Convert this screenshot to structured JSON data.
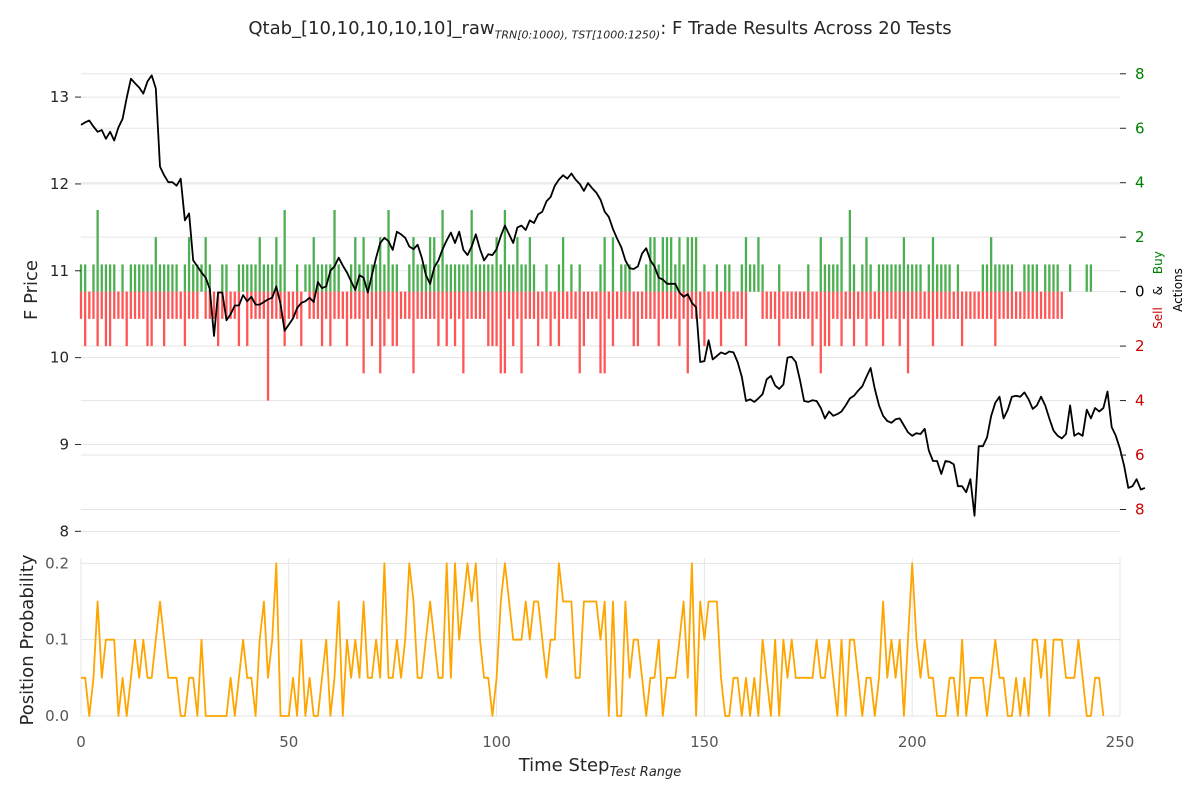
{
  "chart_data": {
    "type": "line",
    "title": {
      "prefix": "Qtab_[10,10,10,10,10]_raw",
      "subscript": "TRN[0:1000), TST[1000:1250)",
      "suffix": ": F Trade Results Across 20 Tests"
    },
    "price_panel": {
      "ylabel": "F Price",
      "ylim": [
        7.9,
        13.45
      ],
      "yticks": [
        "8",
        "9",
        "10",
        "11",
        "12",
        "13"
      ],
      "line_color": "#000000",
      "price": [
        12.68,
        12.71,
        12.73,
        12.66,
        12.6,
        12.62,
        12.52,
        12.6,
        12.5,
        12.65,
        12.75,
        12.99,
        13.21,
        13.16,
        13.11,
        13.04,
        13.18,
        13.25,
        13.1,
        12.2,
        12.1,
        12.02,
        12.02,
        11.98,
        12.06,
        11.58,
        11.66,
        11.12,
        11.05,
        10.98,
        10.92,
        10.79,
        10.25,
        10.75,
        10.75,
        10.43,
        10.5,
        10.6,
        10.6,
        10.72,
        10.65,
        10.7,
        10.61,
        10.61,
        10.64,
        10.67,
        10.69,
        10.82,
        10.62,
        10.31,
        10.38,
        10.45,
        10.57,
        10.63,
        10.65,
        10.69,
        10.64,
        10.87,
        10.8,
        10.82,
        11.0,
        11.05,
        11.15,
        11.06,
        10.98,
        10.88,
        10.78,
        10.95,
        10.92,
        10.75,
        10.95,
        11.15,
        11.32,
        11.38,
        11.34,
        11.24,
        11.45,
        11.42,
        11.38,
        11.28,
        11.25,
        11.3,
        11.15,
        10.95,
        10.85,
        11.04,
        11.12,
        11.25,
        11.35,
        11.44,
        11.32,
        11.45,
        11.24,
        11.18,
        11.28,
        11.42,
        11.25,
        11.12,
        11.19,
        11.18,
        11.25,
        11.4,
        11.52,
        11.42,
        11.32,
        11.5,
        11.52,
        11.47,
        11.58,
        11.55,
        11.65,
        11.68,
        11.8,
        11.85,
        11.98,
        12.05,
        12.1,
        12.06,
        12.12,
        12.05,
        12.0,
        11.92,
        12.01,
        11.95,
        11.9,
        11.82,
        11.68,
        11.62,
        11.48,
        11.37,
        11.27,
        11.12,
        11.03,
        11.02,
        11.05,
        11.2,
        11.26,
        11.12,
        11.05,
        10.92,
        10.9,
        10.85,
        10.85,
        10.85,
        10.75,
        10.7,
        10.73,
        10.63,
        10.58,
        9.95,
        9.96,
        10.2,
        9.98,
        10.02,
        10.06,
        10.04,
        10.07,
        10.06,
        9.95,
        9.78,
        9.5,
        9.52,
        9.49,
        9.53,
        9.58,
        9.75,
        9.79,
        9.68,
        9.64,
        9.69,
        10.0,
        10.01,
        9.95,
        9.74,
        9.5,
        9.49,
        9.51,
        9.5,
        9.42,
        9.3,
        9.38,
        9.33,
        9.35,
        9.38,
        9.45,
        9.53,
        9.56,
        9.62,
        9.67,
        9.78,
        9.88,
        9.64,
        9.45,
        9.33,
        9.27,
        9.25,
        9.29,
        9.3,
        9.22,
        9.14,
        9.1,
        9.13,
        9.12,
        9.18,
        8.93,
        8.81,
        8.81,
        8.66,
        8.81,
        8.8,
        8.77,
        8.52,
        8.52,
        8.45,
        8.6,
        8.18,
        8.98,
        8.98,
        9.08,
        9.33,
        9.48,
        9.55,
        9.3,
        9.4,
        9.55,
        9.56,
        9.55,
        9.6,
        9.52,
        9.41,
        9.45,
        9.55,
        9.45,
        9.3,
        9.16,
        9.1,
        9.07,
        9.12,
        9.45,
        9.1,
        9.13,
        9.1,
        9.4,
        9.3,
        9.42,
        9.38,
        9.42,
        9.61,
        9.2,
        9.1,
        8.95,
        8.75,
        8.5,
        8.52,
        8.6,
        8.48,
        8.5
      ]
    },
    "actions_panel": {
      "ylabel_sell": "Sell",
      "ylabel_and": "&",
      "ylabel_buy": "Buy",
      "ylabel_actions": "Actions",
      "ylim": [
        -9.12,
        8.58
      ],
      "yticks": [
        "8",
        "6",
        "4",
        "2",
        "0",
        "2",
        "4",
        "6",
        "8"
      ],
      "ytick_values": [
        8,
        6,
        4,
        2,
        0,
        -2,
        -4,
        -6,
        -8
      ],
      "ytick_colors": [
        "#008000",
        "#008000",
        "#008000",
        "#008000",
        "#000000",
        "#cc0000",
        "#cc0000",
        "#cc0000",
        "#cc0000"
      ],
      "buy_color": "#4caf50",
      "sell_color": "#ff5555",
      "buy": [
        1,
        1,
        0,
        1,
        3,
        1,
        1,
        1,
        1,
        0,
        1,
        0,
        1,
        1,
        1,
        1,
        1,
        1,
        2,
        1,
        1,
        1,
        1,
        1,
        0,
        1,
        2,
        1,
        1,
        1,
        2,
        1,
        0,
        0,
        1,
        1,
        0,
        0,
        1,
        1,
        1,
        1,
        1,
        2,
        1,
        1,
        1,
        2,
        1,
        3,
        0,
        0,
        1,
        0,
        1,
        1,
        2,
        1,
        1,
        1,
        1,
        3,
        1,
        0,
        0,
        1,
        2,
        1,
        2,
        1,
        1,
        1,
        2,
        1,
        3,
        1,
        1,
        0,
        0,
        1,
        2,
        1,
        1,
        1,
        2,
        2,
        1,
        3,
        1,
        1,
        1,
        1,
        1,
        1,
        3,
        1,
        1,
        1,
        1,
        1,
        2,
        1,
        3,
        1,
        1,
        2,
        1,
        1,
        2,
        1,
        0,
        0,
        1,
        0,
        0,
        1,
        2,
        0,
        1,
        0,
        1,
        0,
        0,
        0,
        0,
        1,
        2,
        0,
        2,
        0,
        1,
        1,
        1,
        0,
        0,
        0,
        1,
        2,
        2,
        1,
        2,
        2,
        2,
        1,
        2,
        1,
        2,
        2,
        2,
        0,
        1,
        0,
        0,
        1,
        0,
        1,
        1,
        0,
        0,
        1,
        2,
        1,
        1,
        2,
        1,
        0,
        0,
        0,
        1,
        0,
        0,
        0,
        0,
        0,
        0,
        1,
        0,
        0,
        2,
        1,
        1,
        1,
        1,
        2,
        0,
        3,
        1,
        0,
        1,
        2,
        1,
        0,
        1,
        1,
        1,
        1,
        1,
        1,
        2,
        1,
        1,
        1,
        1,
        0,
        1,
        2,
        1,
        1,
        1,
        1,
        0,
        1,
        0,
        0,
        0,
        0,
        0,
        1,
        1,
        2,
        1,
        1,
        1,
        1,
        1,
        0,
        0,
        1,
        1,
        1,
        1,
        0,
        1,
        1,
        1,
        1,
        0,
        0,
        1,
        0,
        0,
        0,
        1,
        1
      ],
      "sell": [
        1,
        2,
        1,
        1,
        2,
        1,
        2,
        2,
        1,
        1,
        1,
        2,
        1,
        1,
        1,
        1,
        2,
        2,
        1,
        1,
        2,
        1,
        1,
        1,
        1,
        2,
        1,
        1,
        1,
        0,
        1,
        1,
        1,
        2,
        1,
        1,
        1,
        1,
        2,
        0,
        2,
        1,
        1,
        1,
        1,
        4,
        1,
        1,
        1,
        2,
        1,
        1,
        1,
        2,
        0,
        1,
        1,
        1,
        2,
        1,
        2,
        1,
        1,
        1,
        2,
        1,
        1,
        1,
        3,
        1,
        2,
        1,
        3,
        2,
        1,
        2,
        2,
        1,
        1,
        1,
        3,
        1,
        1,
        1,
        1,
        1,
        2,
        1,
        2,
        1,
        2,
        1,
        3,
        1,
        1,
        1,
        1,
        1,
        2,
        2,
        2,
        3,
        3,
        1,
        2,
        1,
        3,
        1,
        1,
        1,
        2,
        1,
        1,
        2,
        1,
        2,
        1,
        1,
        1,
        1,
        3,
        2,
        1,
        1,
        1,
        3,
        3,
        1,
        2,
        1,
        1,
        1,
        1,
        2,
        2,
        1,
        1,
        1,
        1,
        2,
        1,
        1,
        1,
        1,
        2,
        1,
        3,
        1,
        1,
        1,
        2,
        1,
        1,
        1,
        2,
        1,
        1,
        1,
        1,
        1,
        2,
        0,
        0,
        0,
        1,
        1,
        1,
        1,
        2,
        1,
        1,
        1,
        1,
        1,
        1,
        1,
        2,
        1,
        3,
        2,
        2,
        1,
        1,
        2,
        1,
        1,
        2,
        1,
        1,
        2,
        1,
        1,
        1,
        2,
        1,
        1,
        1,
        2,
        1,
        3,
        1,
        1,
        1,
        1,
        1,
        2,
        1,
        1,
        1,
        1,
        1,
        1,
        2,
        1,
        1,
        1,
        1,
        1,
        1,
        1,
        2,
        1,
        1,
        1,
        1,
        1,
        1,
        1,
        1,
        1,
        1,
        1,
        1,
        1,
        1,
        1,
        1
      ]
    },
    "probability_panel": {
      "ylabel": "Position Probability",
      "ylim": [
        0,
        0.207
      ],
      "yticks": [
        "0.0",
        "0.1",
        "0.2"
      ],
      "line_color": "#ffa500",
      "values": [
        0.05,
        0.05,
        0,
        0.05,
        0.15,
        0.05,
        0.1,
        0.1,
        0.1,
        0,
        0.05,
        0,
        0.05,
        0.1,
        0.05,
        0.1,
        0.05,
        0.05,
        0.1,
        0.15,
        0.1,
        0.05,
        0.05,
        0.05,
        0,
        0,
        0.05,
        0.05,
        0,
        0.1,
        0,
        0,
        0,
        0,
        0,
        0,
        0.05,
        0,
        0.05,
        0.1,
        0.05,
        0.05,
        0,
        0.1,
        0.15,
        0.05,
        0.1,
        0.2,
        0,
        0,
        0,
        0.05,
        0,
        0.1,
        0,
        0.05,
        0,
        0,
        0.05,
        0.1,
        0,
        0.05,
        0.15,
        0,
        0.1,
        0.05,
        0.1,
        0.05,
        0.15,
        0.05,
        0.05,
        0.1,
        0.05,
        0.2,
        0.05,
        0.05,
        0.1,
        0.05,
        0.1,
        0.2,
        0.15,
        0.05,
        0.05,
        0.1,
        0.15,
        0.1,
        0.05,
        0.05,
        0.2,
        0.05,
        0.2,
        0.1,
        0.15,
        0.2,
        0.15,
        0.2,
        0.1,
        0.05,
        0.05,
        0,
        0.05,
        0.15,
        0.2,
        0.15,
        0.1,
        0.1,
        0.1,
        0.15,
        0.1,
        0.15,
        0.15,
        0.1,
        0.05,
        0.1,
        0.1,
        0.2,
        0.15,
        0.15,
        0.15,
        0.05,
        0.05,
        0.15,
        0.15,
        0.15,
        0.15,
        0.1,
        0.15,
        0,
        0.15,
        0,
        0,
        0.15,
        0.05,
        0.1,
        0.1,
        0.05,
        0,
        0.05,
        0.05,
        0.1,
        0,
        0.05,
        0.05,
        0.05,
        0.1,
        0.15,
        0.05,
        0.2,
        0,
        0.15,
        0.1,
        0.15,
        0.15,
        0.15,
        0.05,
        0,
        0,
        0.05,
        0.05,
        0,
        0.05,
        0,
        0.05,
        0,
        0.1,
        0.05,
        0,
        0.1,
        0,
        0.1,
        0.05,
        0.1,
        0.05,
        0.05,
        0.05,
        0.05,
        0.05,
        0.1,
        0.05,
        0.05,
        0.1,
        0.05,
        0,
        0.1,
        0,
        0.1,
        0.1,
        0.05,
        0,
        0.05,
        0.05,
        0,
        0.05,
        0.15,
        0.05,
        0.1,
        0.05,
        0.1,
        0,
        0.1,
        0.2,
        0.1,
        0.05,
        0.1,
        0.05,
        0.05,
        0,
        0,
        0,
        0.05,
        0.05,
        0,
        0.1,
        0,
        0.05,
        0.05,
        0.05,
        0.05,
        0,
        0.05,
        0.1,
        0.05,
        0.05,
        0,
        0,
        0.05,
        0,
        0.05,
        0,
        0.1,
        0.1,
        0.05,
        0.1,
        0,
        0.1,
        0.1,
        0.1,
        0.05,
        0.05,
        0.05,
        0.1,
        0.05,
        0,
        0,
        0.05,
        0.05,
        0
      ]
    },
    "xaxis": {
      "xlabel": "Time Step",
      "xlabel_subscript": "Test Range",
      "xlim": [
        0,
        250
      ],
      "xticks": [
        "0",
        "50",
        "100",
        "150",
        "200",
        "250"
      ],
      "xtick_values": [
        0,
        50,
        100,
        150,
        200,
        250
      ]
    },
    "grid": true,
    "grid_color": "#e5e5e5"
  }
}
